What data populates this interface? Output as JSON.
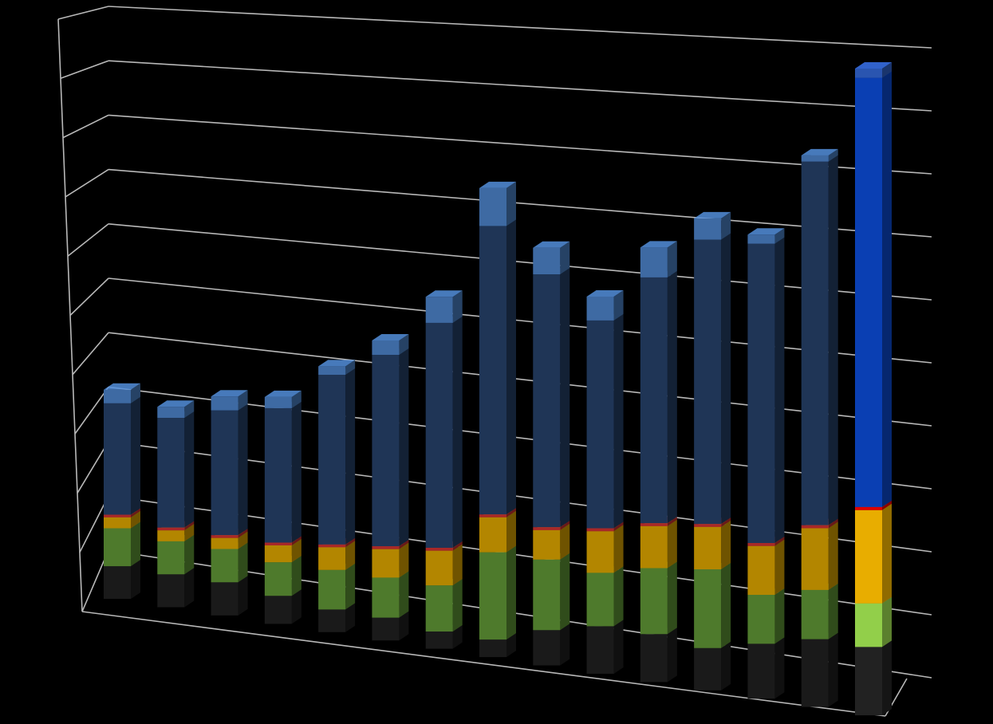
{
  "chart_data": {
    "type": "bar",
    "stacked": true,
    "three_d": true,
    "title": "",
    "xlabel": "",
    "ylabel": "",
    "grid": true,
    "legend": "none",
    "ylim": [
      0,
      10
    ],
    "categories": [
      "",
      "",
      "",
      "",
      "",
      "",
      "",
      "",
      "",
      "",
      "",
      "",
      "",
      "",
      ""
    ],
    "highlight_index": 14,
    "series": [
      {
        "color": "#1a1a1a",
        "highlight_color": "#222222",
        "values": [
          0.6,
          0.6,
          0.6,
          0.5,
          0.4,
          0.4,
          0.3,
          0.3,
          0.6,
          0.8,
          0.8,
          0.7,
          0.9,
          1.1,
          1.1
        ]
      },
      {
        "color": "#4e7a2c",
        "highlight_color": "#92cf4a",
        "values": [
          0.7,
          0.6,
          0.6,
          0.6,
          0.7,
          0.7,
          0.8,
          1.5,
          1.2,
          0.9,
          1.1,
          1.3,
          0.8,
          0.8,
          0.7
        ]
      },
      {
        "color": "#b38600",
        "highlight_color": "#e8ad00",
        "values": [
          0.2,
          0.2,
          0.2,
          0.3,
          0.4,
          0.5,
          0.6,
          0.6,
          0.5,
          0.7,
          0.7,
          0.7,
          0.8,
          1.0,
          1.5
        ]
      },
      {
        "color": "#a82828",
        "highlight_color": "#dd0000",
        "values": [
          0.05,
          0.05,
          0.05,
          0.05,
          0.05,
          0.05,
          0.05,
          0.05,
          0.05,
          0.05,
          0.05,
          0.05,
          0.05,
          0.05,
          0.05
        ]
      },
      {
        "color": "#1f3556",
        "highlight_color": "#0a3fb3",
        "values": [
          2.05,
          2.0,
          2.25,
          2.4,
          3.0,
          3.35,
          3.9,
          4.95,
          4.3,
          3.5,
          4.1,
          4.7,
          4.9,
          5.9,
          6.9
        ]
      },
      {
        "color": "#3e6aa3",
        "highlight_color": "#2a55b0",
        "values": [
          0.25,
          0.2,
          0.25,
          0.2,
          0.15,
          0.25,
          0.45,
          0.65,
          0.45,
          0.4,
          0.5,
          0.35,
          0.15,
          0.1,
          0.15
        ]
      }
    ]
  }
}
